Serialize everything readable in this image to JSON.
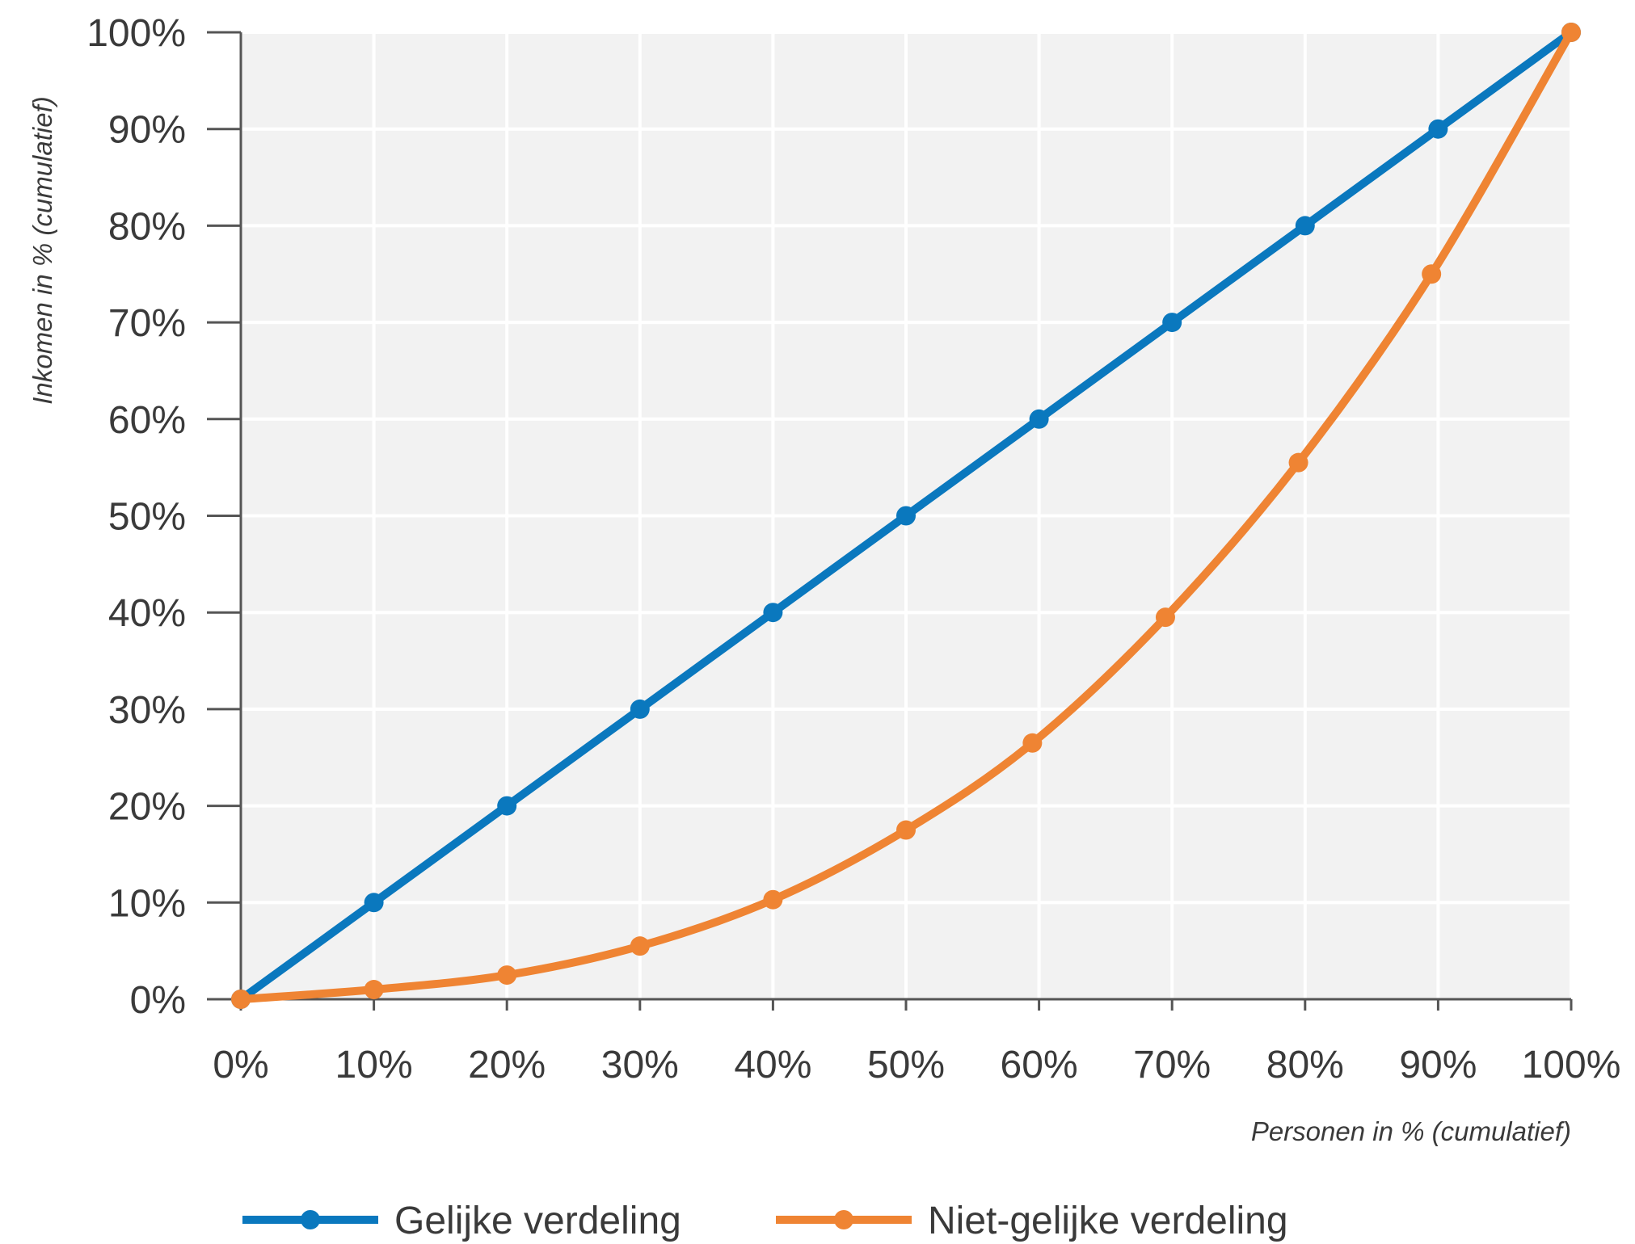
{
  "chart_data": {
    "type": "line",
    "xlabel": "Personen in % (cumulatief)",
    "ylabel": "Inkomen in % (cumulatief)",
    "xlim": [
      0,
      100
    ],
    "ylim": [
      0,
      100
    ],
    "x_tick_labels": [
      "0%",
      "10%",
      "20%",
      "30%",
      "40%",
      "50%",
      "60%",
      "70%",
      "80%",
      "90%",
      "100%"
    ],
    "y_tick_labels": [
      "0%",
      "10%",
      "20%",
      "30%",
      "40%",
      "50%",
      "60%",
      "70%",
      "80%",
      "90%",
      "100%"
    ],
    "grid": true,
    "legend_position": "bottom",
    "series": [
      {
        "name": "Gelijke verdeling",
        "color": "#0a78be",
        "points": [
          {
            "x": 0,
            "y": 0
          },
          {
            "x": 10,
            "y": 10
          },
          {
            "x": 20,
            "y": 20
          },
          {
            "x": 30,
            "y": 30
          },
          {
            "x": 40,
            "y": 40
          },
          {
            "x": 50,
            "y": 50
          },
          {
            "x": 60,
            "y": 60
          },
          {
            "x": 70,
            "y": 70
          },
          {
            "x": 80,
            "y": 80
          },
          {
            "x": 90,
            "y": 90
          },
          {
            "x": 100,
            "y": 100
          }
        ]
      },
      {
        "name": "Niet-gelijke verdeling",
        "color": "#ef8433",
        "points": [
          {
            "x": 0,
            "y": 0
          },
          {
            "x": 10,
            "y": 1
          },
          {
            "x": 20,
            "y": 2.5
          },
          {
            "x": 30,
            "y": 5.5
          },
          {
            "x": 40,
            "y": 10.3
          },
          {
            "x": 50,
            "y": 17.5
          },
          {
            "x": 59.5,
            "y": 26.5
          },
          {
            "x": 69.5,
            "y": 39.5
          },
          {
            "x": 79.5,
            "y": 55.5
          },
          {
            "x": 89.5,
            "y": 75
          },
          {
            "x": 100,
            "y": 100
          }
        ]
      }
    ]
  },
  "colors": {
    "plot_background": "#f2f2f2",
    "grid": "#ffffff",
    "axis": "#555555"
  }
}
